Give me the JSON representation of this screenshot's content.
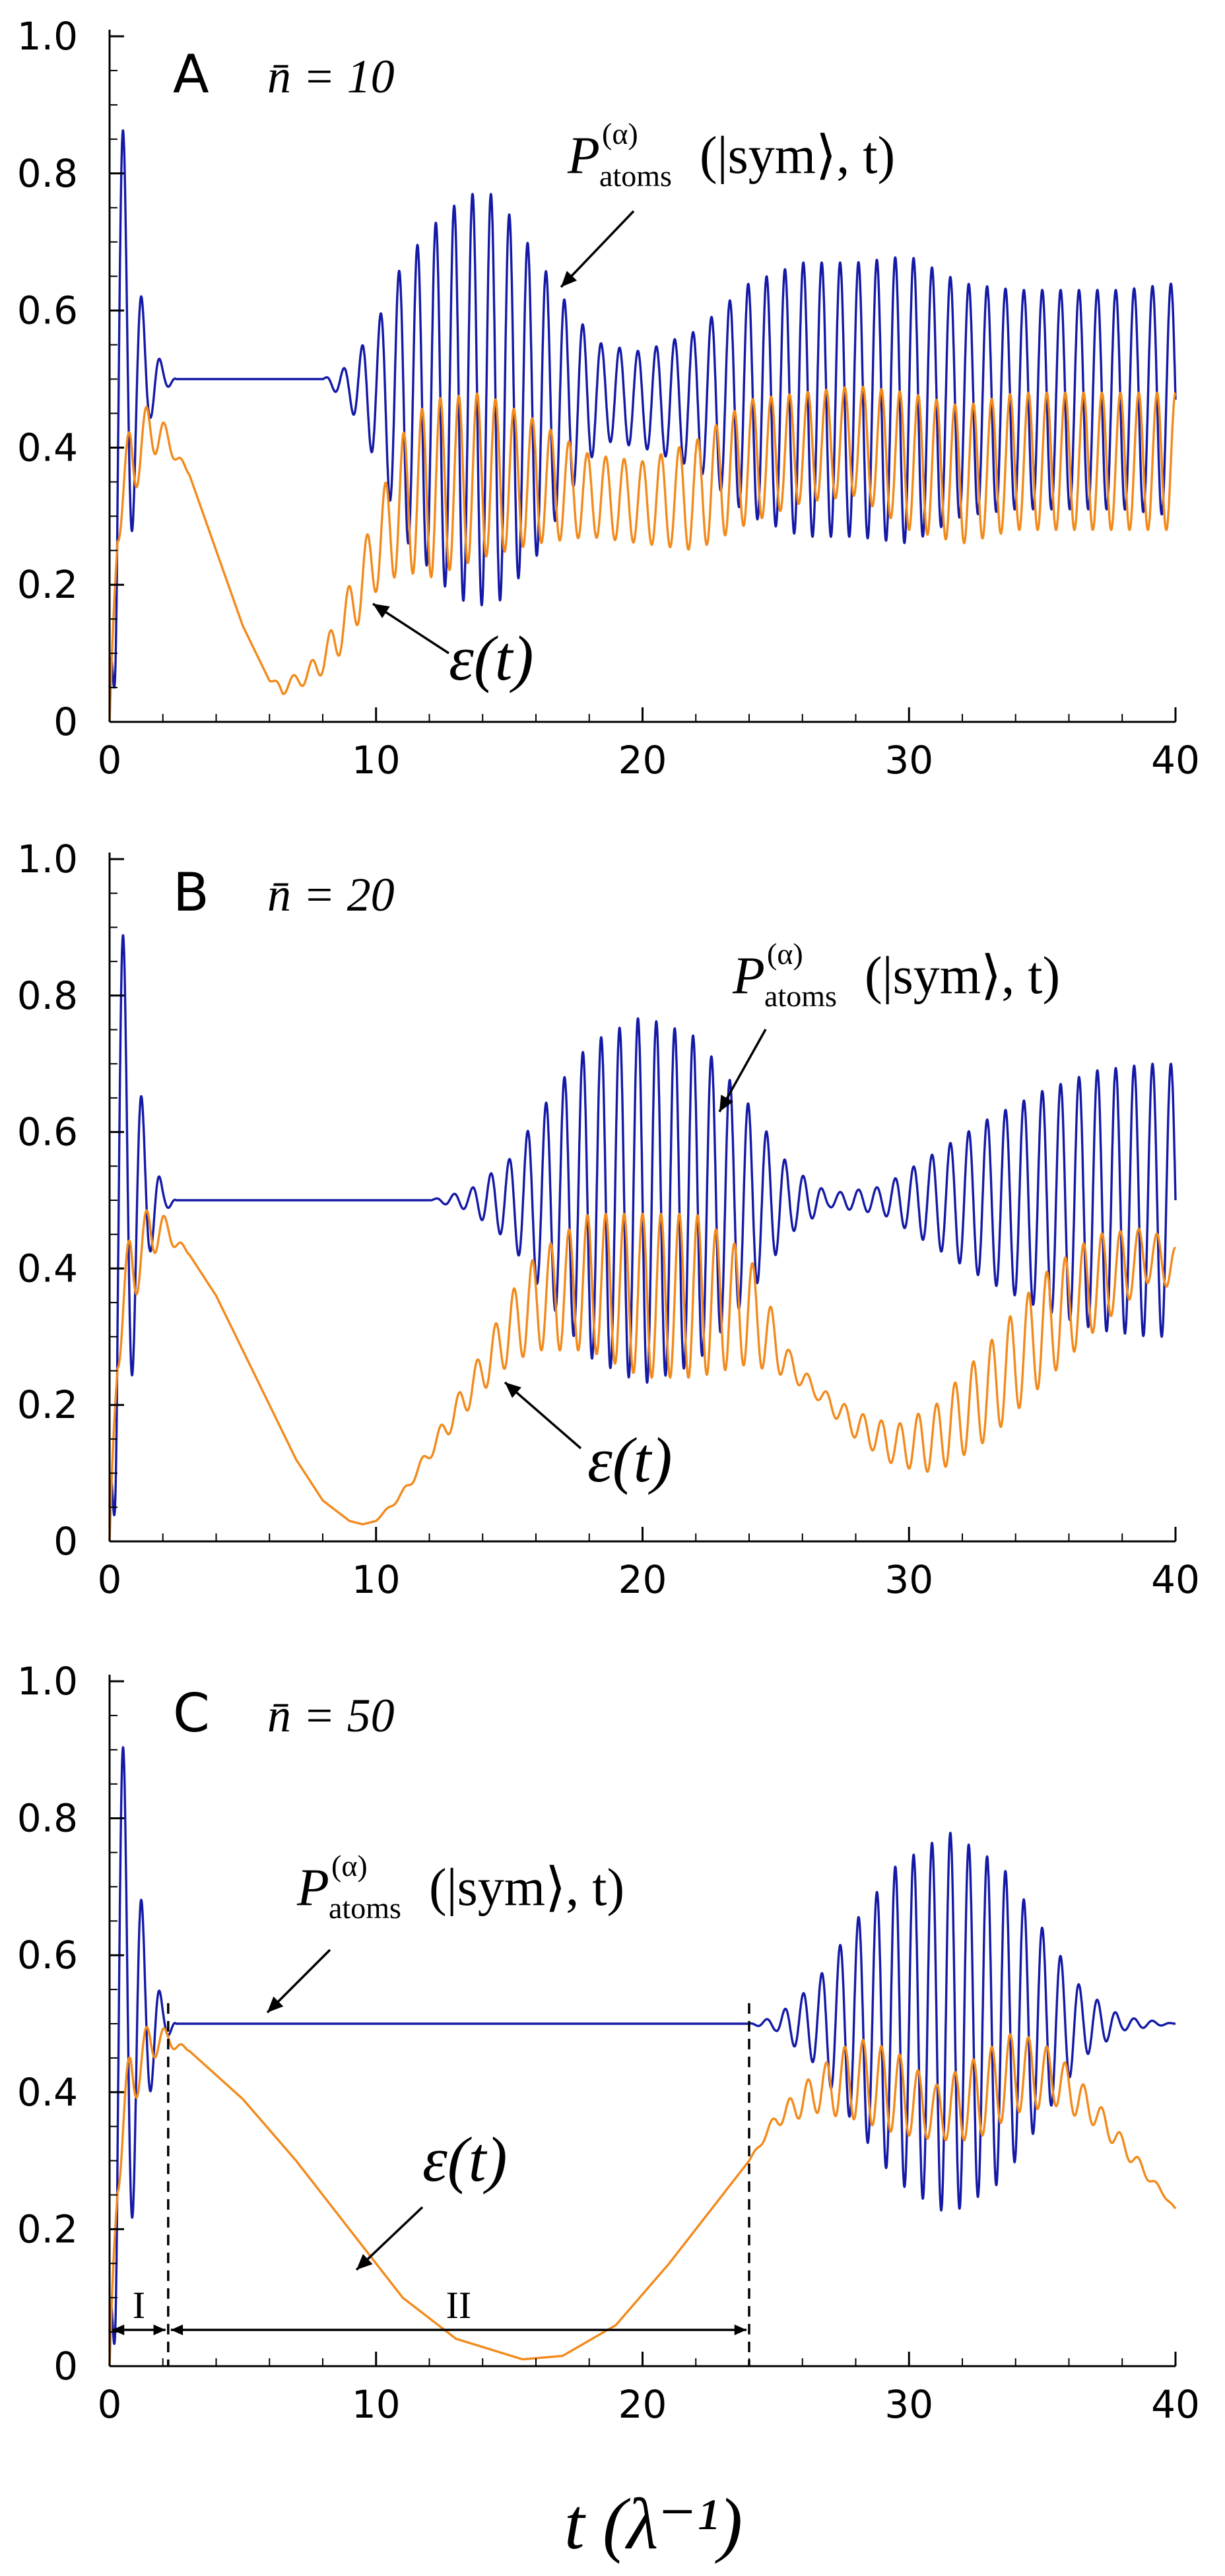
{
  "xlabel": "t (λ⁻¹)",
  "colors": {
    "atoms": "#1419a6",
    "epsilon": "#f28a1c"
  },
  "chart_data": [
    {
      "panel": "A",
      "type": "line",
      "nbar_label": "n̄ = 10",
      "xlim": [
        0,
        40
      ],
      "ylim": [
        0,
        1
      ],
      "x_ticks": [
        "0",
        "10",
        "20",
        "30",
        "40"
      ],
      "y_ticks": [
        "0",
        "0.2",
        "0.4",
        "0.6",
        "0.8",
        "1.0"
      ],
      "atoms_label": {
        "base": "P",
        "sup": "(α)",
        "sub": "atoms",
        "rest": "(|sym⟩, t)"
      },
      "epsilon_label": "ε(t)",
      "series": [
        {
          "name": "P_atoms(|sym⟩,t)",
          "color": "#1419a6",
          "x": [
            0,
            0.3,
            1.0,
            1.5,
            2.0,
            2.5,
            6.0,
            8.0,
            9.0,
            10.0,
            11.0,
            12.5,
            13.5,
            14.5,
            16.0,
            17.5,
            18.5,
            20.0,
            22.0,
            24.0,
            26.0,
            28.0,
            30.0,
            32.0,
            34.0,
            36.0,
            38.0,
            40.0
          ],
          "mean": [
            0.05,
            0.5,
            0.5,
            0.5,
            0.5,
            0.5,
            0.5,
            0.5,
            0.49,
            0.48,
            0.47,
            0.47,
            0.47,
            0.47,
            0.46,
            0.47,
            0.48,
            0.47,
            0.47,
            0.47,
            0.47,
            0.47,
            0.47,
            0.47,
            0.47,
            0.47,
            0.47,
            0.47
          ],
          "amp": [
            0.0,
            0.45,
            0.16,
            0.06,
            0.02,
            0.0,
            0.0,
            0.0,
            0.03,
            0.1,
            0.2,
            0.27,
            0.3,
            0.3,
            0.22,
            0.12,
            0.07,
            0.07,
            0.1,
            0.17,
            0.2,
            0.2,
            0.21,
            0.17,
            0.16,
            0.16,
            0.16,
            0.17
          ],
          "freq": 1.45
        },
        {
          "name": "ε(t)",
          "color": "#f28a1c",
          "x": [
            0,
            0.3,
            0.8,
            1.4,
            2.0,
            3.0,
            4.0,
            5.0,
            6.0,
            6.5,
            7.0,
            7.5,
            8.0,
            8.5,
            9.0,
            10.0,
            11.0,
            12.0,
            14.0,
            16.0,
            18.0,
            20.0,
            22.0,
            24.0,
            26.0,
            28.0,
            30.0,
            32.0,
            34.0,
            36.0,
            38.0,
            40.0
          ],
          "mean": [
            0.0,
            0.3,
            0.38,
            0.42,
            0.42,
            0.36,
            0.25,
            0.14,
            0.06,
            0.05,
            0.06,
            0.07,
            0.09,
            0.12,
            0.16,
            0.25,
            0.32,
            0.34,
            0.36,
            0.35,
            0.33,
            0.32,
            0.33,
            0.38,
            0.4,
            0.41,
            0.38,
            0.36,
            0.38,
            0.38,
            0.38,
            0.38
          ],
          "amp": [
            0.0,
            0.04,
            0.06,
            0.04,
            0.02,
            0.0,
            0.0,
            0.0,
            0.0,
            0.01,
            0.01,
            0.015,
            0.02,
            0.03,
            0.04,
            0.06,
            0.1,
            0.13,
            0.12,
            0.09,
            0.06,
            0.06,
            0.08,
            0.09,
            0.08,
            0.08,
            0.1,
            0.1,
            0.1,
            0.1,
            0.1,
            0.1
          ],
          "freq": 1.45
        }
      ]
    },
    {
      "panel": "B",
      "type": "line",
      "nbar_label": "n̄ = 20",
      "xlim": [
        0,
        40
      ],
      "ylim": [
        0,
        1
      ],
      "x_ticks": [
        "0",
        "10",
        "20",
        "30",
        "40"
      ],
      "y_ticks": [
        "0",
        "0.2",
        "0.4",
        "0.6",
        "0.8",
        "1.0"
      ],
      "atoms_label": {
        "base": "P",
        "sup": "(α)",
        "sub": "atoms",
        "rest": "(|sym⟩, t)"
      },
      "epsilon_label": "ε(t)",
      "series": [
        {
          "name": "P_atoms(|sym⟩,t)",
          "color": "#1419a6",
          "x": [
            0,
            0.3,
            1.0,
            1.5,
            2.0,
            2.5,
            12.0,
            13.5,
            15.0,
            16.5,
            18.0,
            20.0,
            22.0,
            24.0,
            25.5,
            27.0,
            29.0,
            31.0,
            33.0,
            35.0,
            37.0,
            39.0,
            40.0
          ],
          "mean": [
            0.05,
            0.5,
            0.5,
            0.5,
            0.5,
            0.5,
            0.5,
            0.5,
            0.5,
            0.5,
            0.5,
            0.5,
            0.5,
            0.5,
            0.5,
            0.5,
            0.5,
            0.5,
            0.5,
            0.5,
            0.5,
            0.5,
            0.5
          ],
          "amp": [
            0.0,
            0.47,
            0.2,
            0.08,
            0.02,
            0.0,
            0.0,
            0.015,
            0.06,
            0.15,
            0.23,
            0.27,
            0.24,
            0.14,
            0.05,
            0.01,
            0.02,
            0.07,
            0.12,
            0.16,
            0.19,
            0.2,
            0.2
          ],
          "freq": 1.45
        },
        {
          "name": "ε(t)",
          "color": "#f28a1c",
          "x": [
            0,
            0.3,
            0.8,
            1.5,
            2.0,
            3.0,
            4.0,
            5.0,
            6.0,
            7.0,
            8.0,
            9.0,
            9.5,
            10.0,
            11.0,
            12.0,
            13.0,
            14.0,
            15.0,
            16.0,
            18.0,
            20.0,
            22.0,
            24.0,
            25.5,
            26.5,
            28.0,
            29.5,
            31.0,
            33.0,
            35.0,
            37.0,
            39.0,
            40.0
          ],
          "mean": [
            0.0,
            0.3,
            0.4,
            0.45,
            0.46,
            0.42,
            0.36,
            0.28,
            0.2,
            0.12,
            0.06,
            0.03,
            0.025,
            0.03,
            0.07,
            0.13,
            0.19,
            0.25,
            0.31,
            0.35,
            0.38,
            0.36,
            0.36,
            0.34,
            0.26,
            0.22,
            0.17,
            0.14,
            0.15,
            0.22,
            0.31,
            0.38,
            0.42,
            0.4
          ],
          "amp": [
            0.0,
            0.05,
            0.06,
            0.04,
            0.02,
            0.0,
            0.0,
            0.0,
            0.0,
            0.0,
            0.0,
            0.0,
            0.0,
            0.0,
            0.005,
            0.01,
            0.02,
            0.03,
            0.05,
            0.07,
            0.1,
            0.12,
            0.12,
            0.08,
            0.02,
            0.01,
            0.02,
            0.03,
            0.05,
            0.07,
            0.08,
            0.07,
            0.04,
            0.03
          ],
          "freq": 1.45
        }
      ]
    },
    {
      "panel": "C",
      "type": "line",
      "nbar_label": "n̄ = 50",
      "xlim": [
        0,
        40
      ],
      "ylim": [
        0,
        1
      ],
      "x_ticks": [
        "0",
        "10",
        "20",
        "30",
        "40"
      ],
      "y_ticks": [
        "0",
        "0.2",
        "0.4",
        "0.6",
        "0.8",
        "1.0"
      ],
      "atoms_label": {
        "base": "P",
        "sup": "(α)",
        "sub": "atoms",
        "rest": "(|sym⟩, t)"
      },
      "epsilon_label": "ε(t)",
      "regions": [
        {
          "label": "I",
          "x0": 0,
          "x1": 2.2
        },
        {
          "label": "II",
          "x0": 2.2,
          "x1": 24.0
        }
      ],
      "dashed_x": [
        2.2,
        24.0
      ],
      "series": [
        {
          "name": "P_atoms(|sym⟩,t)",
          "color": "#1419a6",
          "x": [
            0,
            0.3,
            0.8,
            1.4,
            2.0,
            2.5,
            24.0,
            25.0,
            26.5,
            28.0,
            29.5,
            31.5,
            33.5,
            35.0,
            36.5,
            38.0,
            40.0
          ],
          "mean": [
            0.05,
            0.5,
            0.5,
            0.5,
            0.5,
            0.5,
            0.5,
            0.5,
            0.5,
            0.5,
            0.5,
            0.5,
            0.5,
            0.5,
            0.5,
            0.5,
            0.5
          ],
          "amp": [
            0.0,
            0.48,
            0.3,
            0.12,
            0.03,
            0.0,
            0.0,
            0.01,
            0.06,
            0.15,
            0.23,
            0.28,
            0.23,
            0.14,
            0.05,
            0.01,
            0.0
          ],
          "freq": 1.45
        },
        {
          "name": "ε(t)",
          "color": "#f28a1c",
          "x": [
            0,
            0.3,
            0.8,
            1.5,
            2.0,
            3.0,
            5.0,
            7.0,
            9.0,
            11.0,
            13.0,
            15.5,
            17.0,
            19.0,
            21.0,
            23.0,
            24.0,
            25.0,
            26.5,
            28.0,
            29.5,
            31.0,
            32.5,
            34.0,
            35.5,
            37.0,
            38.5,
            40.0
          ],
          "mean": [
            0.0,
            0.3,
            0.42,
            0.47,
            0.48,
            0.46,
            0.39,
            0.3,
            0.2,
            0.1,
            0.04,
            0.01,
            0.015,
            0.06,
            0.15,
            0.25,
            0.3,
            0.36,
            0.4,
            0.42,
            0.4,
            0.37,
            0.39,
            0.43,
            0.42,
            0.37,
            0.3,
            0.23
          ],
          "amp": [
            0.0,
            0.05,
            0.05,
            0.03,
            0.015,
            0.0,
            0.0,
            0.0,
            0.0,
            0.0,
            0.0,
            0.0,
            0.0,
            0.0,
            0.0,
            0.0,
            0.0,
            0.01,
            0.03,
            0.06,
            0.06,
            0.04,
            0.06,
            0.06,
            0.04,
            0.02,
            0.01,
            0.0
          ],
          "freq": 1.45
        }
      ]
    }
  ]
}
